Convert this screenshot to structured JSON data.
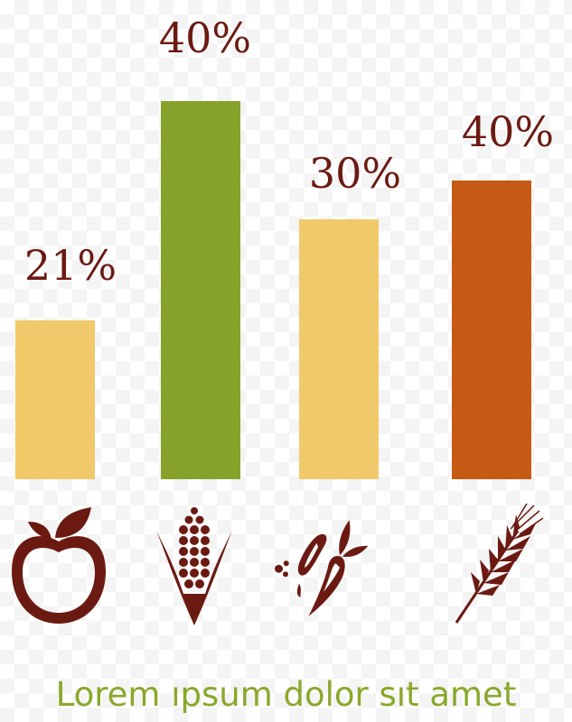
{
  "chart_data": {
    "type": "bar",
    "categories": [
      "fruit",
      "corn",
      "vegetables",
      "wheat"
    ],
    "values": [
      21,
      40,
      30,
      40
    ],
    "data_labels": [
      "21%",
      "40%",
      "30%",
      "40%"
    ],
    "bar_colors": [
      "#f2c96a",
      "#86a22a",
      "#f2c96a",
      "#c65a14"
    ],
    "label_color": "#6b1a12",
    "icons": [
      "apple-icon",
      "corn-icon",
      "carrot-pepper-icon",
      "wheat-icon"
    ],
    "grid": false,
    "title": "",
    "xlabel": "",
    "ylabel": ""
  },
  "caption": "Lorem ıpsum dolor sıt amet",
  "colors": {
    "caption": "#8aa82a",
    "icon": "#6b1a12"
  }
}
